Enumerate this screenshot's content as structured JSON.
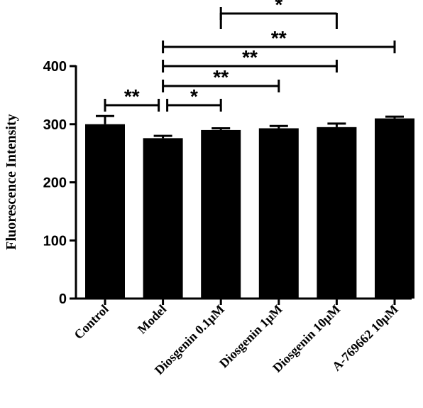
{
  "chart_data": {
    "type": "bar",
    "title": "",
    "xlabel": "",
    "ylabel": "Fluorescence Intensity",
    "categories": [
      "Control",
      "Model",
      "Diosgenin 0.1μM",
      "Diosgenin 1μM",
      "Diosgenin 10μM",
      "A-769662 10μM"
    ],
    "values": [
      300,
      276,
      290,
      293,
      295,
      310
    ],
    "errors": [
      14,
      4,
      3,
      4,
      6,
      3
    ],
    "ylim": [
      0,
      400
    ],
    "yticks": [
      0,
      100,
      200,
      300,
      400
    ],
    "bar_color": "#000000",
    "grid": false,
    "legend": "none",
    "comparisons": [
      {
        "from": "Control",
        "to": "Model",
        "label": "**"
      },
      {
        "from": "Model",
        "to": "Diosgenin 0.1μM",
        "label": "*"
      },
      {
        "from": "Model",
        "to": "Diosgenin 1μM",
        "label": "**"
      },
      {
        "from": "Model",
        "to": "Diosgenin 10μM",
        "label": "**"
      },
      {
        "from": "Model",
        "to": "A-769662 10μM",
        "label": "**"
      },
      {
        "from": "Diosgenin 0.1μM",
        "to": "Diosgenin 10μM",
        "label": "*"
      }
    ]
  }
}
